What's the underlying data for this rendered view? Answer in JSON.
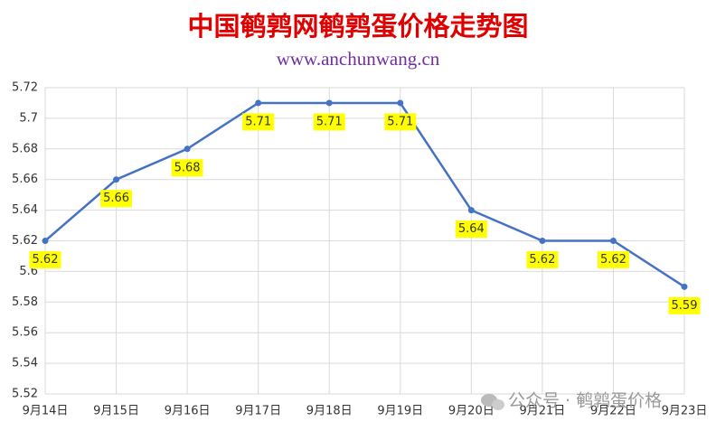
{
  "chart_data": {
    "type": "line",
    "title": "中国鹌鹑网鹌鹑蛋价格走势图",
    "subtitle": "www.anchunwang.cn",
    "categories": [
      "9月14日",
      "9月15日",
      "9月16日",
      "9月17日",
      "9月18日",
      "9月19日",
      "9月20日",
      "9月21日",
      "9月22日",
      "9月23日"
    ],
    "series": [
      {
        "name": "鹌鹑蛋价格",
        "color": "#4472c4",
        "values": [
          5.62,
          5.66,
          5.68,
          5.71,
          5.71,
          5.71,
          5.64,
          5.62,
          5.62,
          5.59
        ]
      }
    ],
    "ylim": [
      5.52,
      5.72
    ],
    "yticks": [
      5.52,
      5.54,
      5.56,
      5.58,
      5.6,
      5.62,
      5.64,
      5.66,
      5.68,
      5.7,
      5.72
    ],
    "grid": true,
    "watermark": "公众号 · 鹌鹑蛋价格"
  }
}
